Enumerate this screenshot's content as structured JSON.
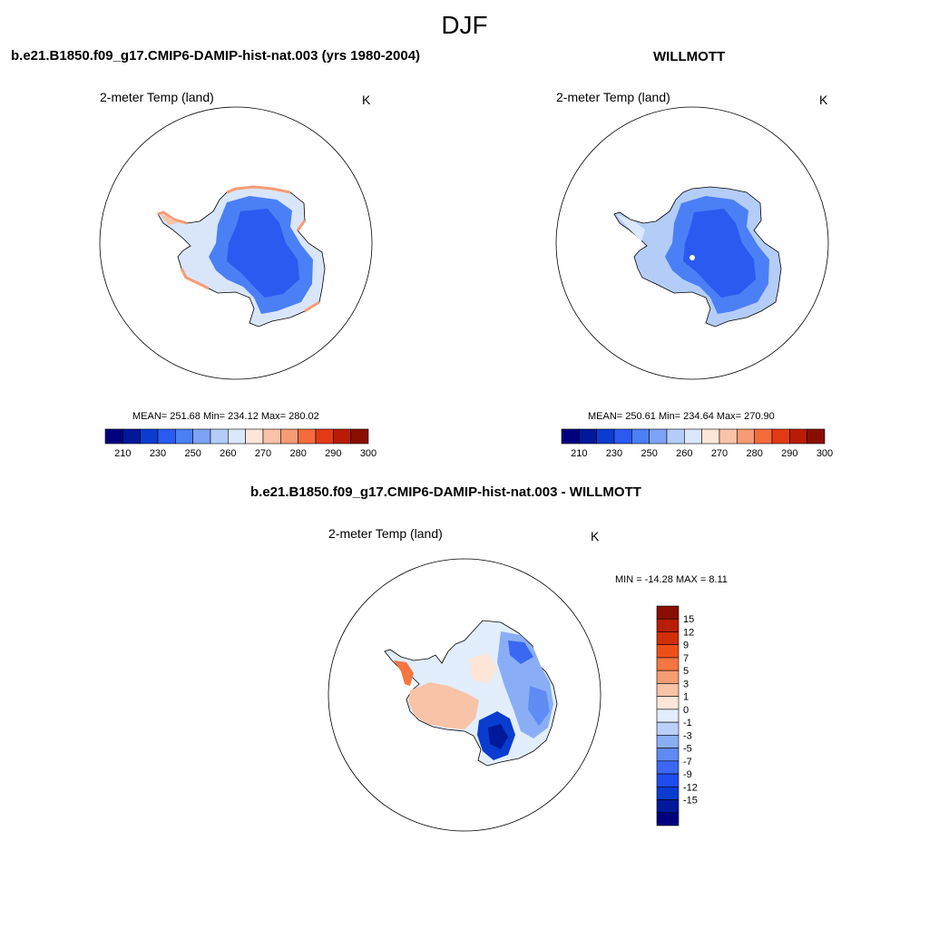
{
  "season_title": "DJF",
  "variable": {
    "label": "2-meter Temp (land)",
    "units": "K"
  },
  "panels": {
    "model": {
      "title": "b.e21.B1850.f09_g17.CMIP6-DAMIP-hist-nat.003 (yrs 1980-2004)",
      "variable_label": "2-meter Temp (land)",
      "units": "K",
      "stats": "MEAN= 251.68  Min= 234.12  Max= 280.02",
      "mean": 251.68,
      "min": 234.12,
      "max": 280.02
    },
    "obs": {
      "title": "WILLMOTT",
      "variable_label": "2-meter Temp (land)",
      "units": "K",
      "stats": "MEAN= 250.61  Min= 234.64  Max= 270.90",
      "mean": 250.61,
      "min": 234.64,
      "max": 270.9
    },
    "diff": {
      "title": "b.e21.B1850.f09_g17.CMIP6-DAMIP-hist-nat.003 - WILLMOTT",
      "variable_label": "2-meter Temp (land)",
      "units": "K",
      "stats": "MIN = -14.28 MAX =   8.11",
      "min": -14.28,
      "max": 8.11
    }
  },
  "abs_colorbar": {
    "colors": [
      "#00007f",
      "#00189a",
      "#0a3cd0",
      "#2a5af0",
      "#4b7ff5",
      "#7ea2f5",
      "#b4cdf8",
      "#dbe8fb",
      "#fde6d8",
      "#f8c3a9",
      "#f79b74",
      "#f56b3c",
      "#e33a16",
      "#b91c06",
      "#8a0e00"
    ],
    "tick_labels": [
      "210",
      "230",
      "250",
      "260",
      "270",
      "280",
      "290",
      "300"
    ]
  },
  "diff_colorbar": {
    "colors": [
      "#00007f",
      "#00189a",
      "#0a3cd0",
      "#1f4cee",
      "#3a68f3",
      "#5f8bf4",
      "#8aaef6",
      "#b9d0f9",
      "#e2eefc",
      "#fde6d8",
      "#f9c3a8",
      "#f69c72",
      "#f47640",
      "#ef4e18",
      "#d02e07",
      "#b71d02",
      "#8a0e00"
    ],
    "tick_labels": [
      "15",
      "12",
      "9",
      "7",
      "5",
      "3",
      "1",
      "0",
      "-1",
      "-3",
      "-5",
      "-7",
      "-9",
      "-12",
      "-15"
    ]
  }
}
